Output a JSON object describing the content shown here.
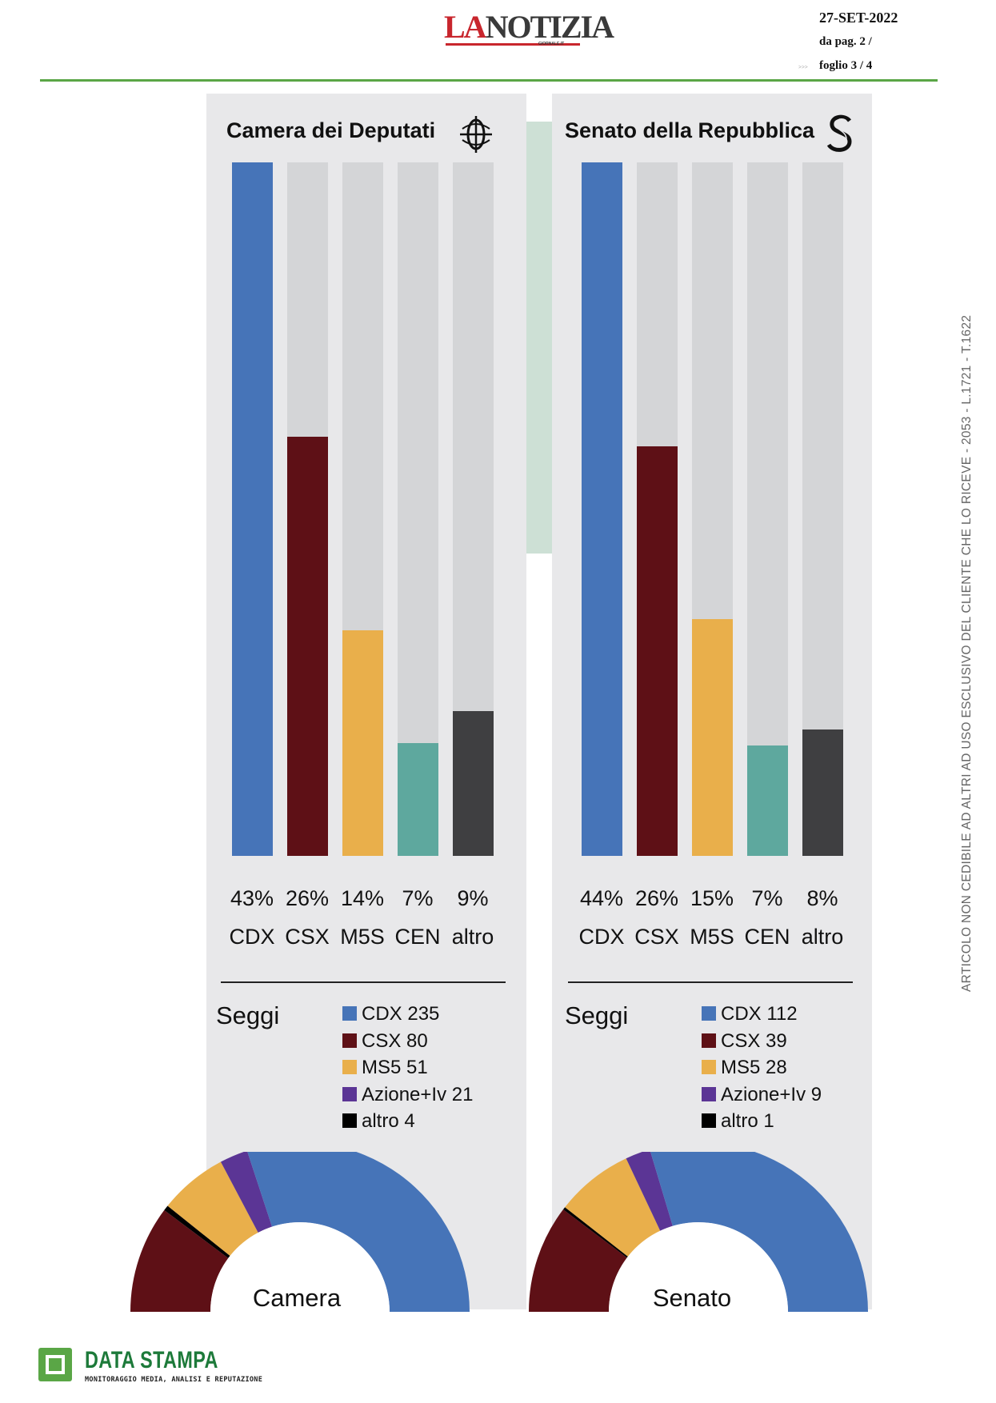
{
  "header": {
    "logo_text_a": "LA",
    "logo_text_b": "NOTIZIA",
    "logo_sub": "GIORNALE.IT",
    "date": "27-SET-2022",
    "page": "da pag.  2 /",
    "sheet": "foglio 3 / 4",
    "mark": ">>>"
  },
  "side_note": "ARTICOLO NON CEDIBILE AD ALTRI AD USO ESCLUSIVO DEL CLIENTE CHE LO RICEVE - 2053 - L.1721 - T.1622",
  "colors": {
    "CDX": "#4674b8",
    "CSX": "#5e1016",
    "M5S": "#e9af4b",
    "CEN": "#5ea89e",
    "altro": "#3f3f41",
    "Azione+Iv": "#5b3595",
    "altro_seats": "#000000",
    "track": "#d4d5d7",
    "panel": "#e8e8ea"
  },
  "chart_data": [
    {
      "type": "bar",
      "title": "Camera dei Deputati",
      "categories": [
        "CDX",
        "CSX",
        "M5S",
        "CEN",
        "altro"
      ],
      "values": [
        43,
        26,
        14,
        7,
        9
      ],
      "value_labels": [
        "43%",
        "26%",
        "14%",
        "7%",
        "9%"
      ],
      "ylim": [
        0,
        43
      ]
    },
    {
      "type": "pie",
      "title": "Seggi",
      "center_label": "Camera",
      "legend": [
        "CDX 235",
        "CSX 80",
        "MS5 51",
        "Azione+Iv 21",
        "altro 4"
      ],
      "categories": [
        "CDX",
        "CSX",
        "MS5",
        "Azione+Iv",
        "altro"
      ],
      "values": [
        235,
        80,
        51,
        21,
        4
      ]
    },
    {
      "type": "bar",
      "title": "Senato della Repubblica",
      "categories": [
        "CDX",
        "CSX",
        "M5S",
        "CEN",
        "altro"
      ],
      "values": [
        44,
        26,
        15,
        7,
        8
      ],
      "value_labels": [
        "44%",
        "26%",
        "15%",
        "7%",
        "8%"
      ],
      "ylim": [
        0,
        44
      ]
    },
    {
      "type": "pie",
      "title": "Seggi",
      "center_label": "Senato",
      "legend": [
        "CDX 112",
        "CSX 39",
        "MS5 28",
        "Azione+Iv 9",
        "altro 1"
      ],
      "categories": [
        "CDX",
        "CSX",
        "MS5",
        "Azione+Iv",
        "altro"
      ],
      "values": [
        112,
        39,
        28,
        9,
        1
      ]
    }
  ],
  "footer": {
    "brand": "DATA STAMPA",
    "tagline": "MONITORAGGIO MEDIA, ANALISI E REPUTAZIONE"
  }
}
